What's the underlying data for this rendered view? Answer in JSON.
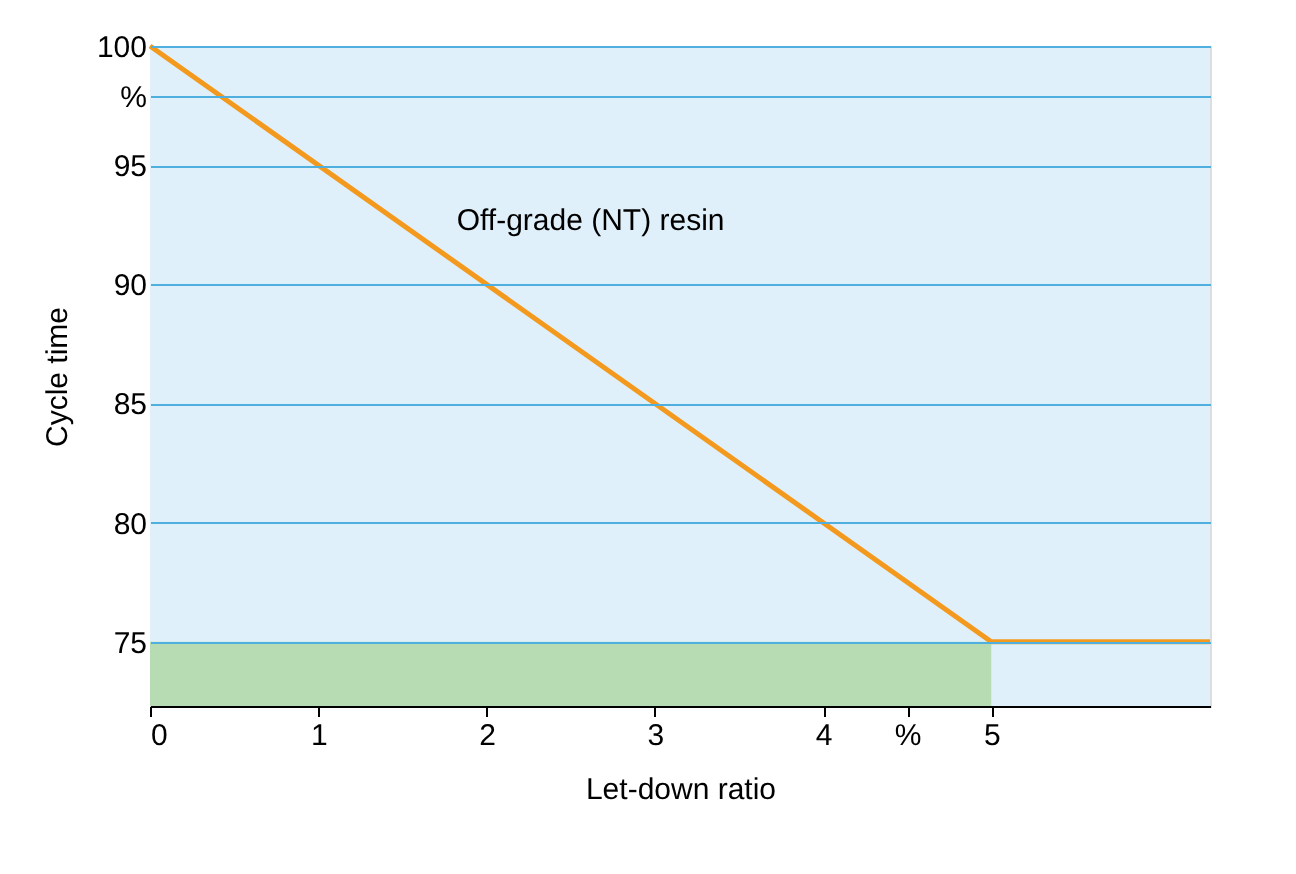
{
  "chart_data": {
    "type": "line",
    "xlabel": "Let-down ratio",
    "ylabel": "Cycle time",
    "xlim": [
      0,
      6.3
    ],
    "ylim": [
      72.3,
      100
    ],
    "xticks": [
      0,
      1,
      2,
      3,
      4,
      {
        "value": 4.5,
        "label": "%"
      },
      5
    ],
    "yticks": [
      75,
      80,
      85,
      90,
      95,
      {
        "value": 97.9,
        "label": "%"
      },
      100
    ],
    "grid": "y",
    "legend": false,
    "line_style": "solid",
    "series": [
      {
        "type": "area",
        "x": [
          0,
          5
        ],
        "values": [
          75,
          75
        ],
        "color": "#b7dcb4"
      },
      {
        "name": "Off-grade (NT) resin",
        "x": [
          0,
          5,
          6.3
        ],
        "values": [
          100,
          75,
          75
        ],
        "color": "#f39a1e"
      }
    ]
  }
}
